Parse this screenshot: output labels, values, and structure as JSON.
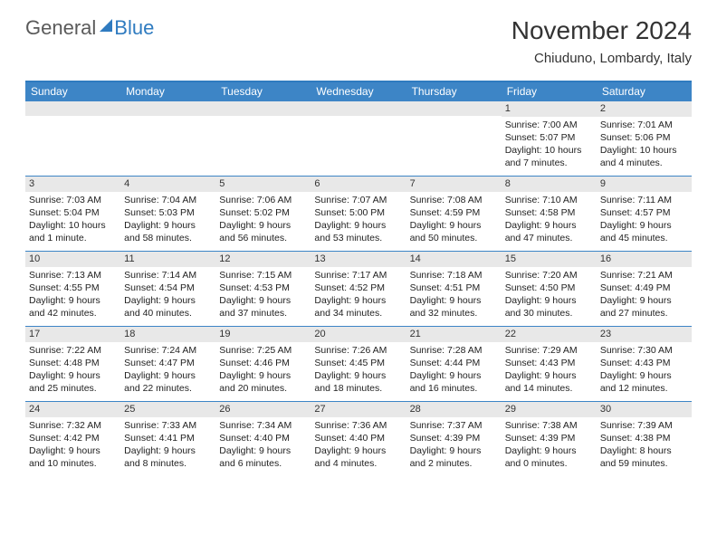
{
  "logo": {
    "general": "General",
    "blue": "Blue"
  },
  "title": "November 2024",
  "location": "Chiuduno, Lombardy, Italy",
  "colors": {
    "accent": "#3d85c6",
    "bar": "#e8e8e8",
    "text": "#222222",
    "header_text": "#ffffff"
  },
  "day_headers": [
    "Sunday",
    "Monday",
    "Tuesday",
    "Wednesday",
    "Thursday",
    "Friday",
    "Saturday"
  ],
  "weeks": [
    [
      {
        "n": "",
        "sr": "",
        "ss": "",
        "dl": ""
      },
      {
        "n": "",
        "sr": "",
        "ss": "",
        "dl": ""
      },
      {
        "n": "",
        "sr": "",
        "ss": "",
        "dl": ""
      },
      {
        "n": "",
        "sr": "",
        "ss": "",
        "dl": ""
      },
      {
        "n": "",
        "sr": "",
        "ss": "",
        "dl": ""
      },
      {
        "n": "1",
        "sr": "Sunrise: 7:00 AM",
        "ss": "Sunset: 5:07 PM",
        "dl": "Daylight: 10 hours and 7 minutes."
      },
      {
        "n": "2",
        "sr": "Sunrise: 7:01 AM",
        "ss": "Sunset: 5:06 PM",
        "dl": "Daylight: 10 hours and 4 minutes."
      }
    ],
    [
      {
        "n": "3",
        "sr": "Sunrise: 7:03 AM",
        "ss": "Sunset: 5:04 PM",
        "dl": "Daylight: 10 hours and 1 minute."
      },
      {
        "n": "4",
        "sr": "Sunrise: 7:04 AM",
        "ss": "Sunset: 5:03 PM",
        "dl": "Daylight: 9 hours and 58 minutes."
      },
      {
        "n": "5",
        "sr": "Sunrise: 7:06 AM",
        "ss": "Sunset: 5:02 PM",
        "dl": "Daylight: 9 hours and 56 minutes."
      },
      {
        "n": "6",
        "sr": "Sunrise: 7:07 AM",
        "ss": "Sunset: 5:00 PM",
        "dl": "Daylight: 9 hours and 53 minutes."
      },
      {
        "n": "7",
        "sr": "Sunrise: 7:08 AM",
        "ss": "Sunset: 4:59 PM",
        "dl": "Daylight: 9 hours and 50 minutes."
      },
      {
        "n": "8",
        "sr": "Sunrise: 7:10 AM",
        "ss": "Sunset: 4:58 PM",
        "dl": "Daylight: 9 hours and 47 minutes."
      },
      {
        "n": "9",
        "sr": "Sunrise: 7:11 AM",
        "ss": "Sunset: 4:57 PM",
        "dl": "Daylight: 9 hours and 45 minutes."
      }
    ],
    [
      {
        "n": "10",
        "sr": "Sunrise: 7:13 AM",
        "ss": "Sunset: 4:55 PM",
        "dl": "Daylight: 9 hours and 42 minutes."
      },
      {
        "n": "11",
        "sr": "Sunrise: 7:14 AM",
        "ss": "Sunset: 4:54 PM",
        "dl": "Daylight: 9 hours and 40 minutes."
      },
      {
        "n": "12",
        "sr": "Sunrise: 7:15 AM",
        "ss": "Sunset: 4:53 PM",
        "dl": "Daylight: 9 hours and 37 minutes."
      },
      {
        "n": "13",
        "sr": "Sunrise: 7:17 AM",
        "ss": "Sunset: 4:52 PM",
        "dl": "Daylight: 9 hours and 34 minutes."
      },
      {
        "n": "14",
        "sr": "Sunrise: 7:18 AM",
        "ss": "Sunset: 4:51 PM",
        "dl": "Daylight: 9 hours and 32 minutes."
      },
      {
        "n": "15",
        "sr": "Sunrise: 7:20 AM",
        "ss": "Sunset: 4:50 PM",
        "dl": "Daylight: 9 hours and 30 minutes."
      },
      {
        "n": "16",
        "sr": "Sunrise: 7:21 AM",
        "ss": "Sunset: 4:49 PM",
        "dl": "Daylight: 9 hours and 27 minutes."
      }
    ],
    [
      {
        "n": "17",
        "sr": "Sunrise: 7:22 AM",
        "ss": "Sunset: 4:48 PM",
        "dl": "Daylight: 9 hours and 25 minutes."
      },
      {
        "n": "18",
        "sr": "Sunrise: 7:24 AM",
        "ss": "Sunset: 4:47 PM",
        "dl": "Daylight: 9 hours and 22 minutes."
      },
      {
        "n": "19",
        "sr": "Sunrise: 7:25 AM",
        "ss": "Sunset: 4:46 PM",
        "dl": "Daylight: 9 hours and 20 minutes."
      },
      {
        "n": "20",
        "sr": "Sunrise: 7:26 AM",
        "ss": "Sunset: 4:45 PM",
        "dl": "Daylight: 9 hours and 18 minutes."
      },
      {
        "n": "21",
        "sr": "Sunrise: 7:28 AM",
        "ss": "Sunset: 4:44 PM",
        "dl": "Daylight: 9 hours and 16 minutes."
      },
      {
        "n": "22",
        "sr": "Sunrise: 7:29 AM",
        "ss": "Sunset: 4:43 PM",
        "dl": "Daylight: 9 hours and 14 minutes."
      },
      {
        "n": "23",
        "sr": "Sunrise: 7:30 AM",
        "ss": "Sunset: 4:43 PM",
        "dl": "Daylight: 9 hours and 12 minutes."
      }
    ],
    [
      {
        "n": "24",
        "sr": "Sunrise: 7:32 AM",
        "ss": "Sunset: 4:42 PM",
        "dl": "Daylight: 9 hours and 10 minutes."
      },
      {
        "n": "25",
        "sr": "Sunrise: 7:33 AM",
        "ss": "Sunset: 4:41 PM",
        "dl": "Daylight: 9 hours and 8 minutes."
      },
      {
        "n": "26",
        "sr": "Sunrise: 7:34 AM",
        "ss": "Sunset: 4:40 PM",
        "dl": "Daylight: 9 hours and 6 minutes."
      },
      {
        "n": "27",
        "sr": "Sunrise: 7:36 AM",
        "ss": "Sunset: 4:40 PM",
        "dl": "Daylight: 9 hours and 4 minutes."
      },
      {
        "n": "28",
        "sr": "Sunrise: 7:37 AM",
        "ss": "Sunset: 4:39 PM",
        "dl": "Daylight: 9 hours and 2 minutes."
      },
      {
        "n": "29",
        "sr": "Sunrise: 7:38 AM",
        "ss": "Sunset: 4:39 PM",
        "dl": "Daylight: 9 hours and 0 minutes."
      },
      {
        "n": "30",
        "sr": "Sunrise: 7:39 AM",
        "ss": "Sunset: 4:38 PM",
        "dl": "Daylight: 8 hours and 59 minutes."
      }
    ]
  ]
}
